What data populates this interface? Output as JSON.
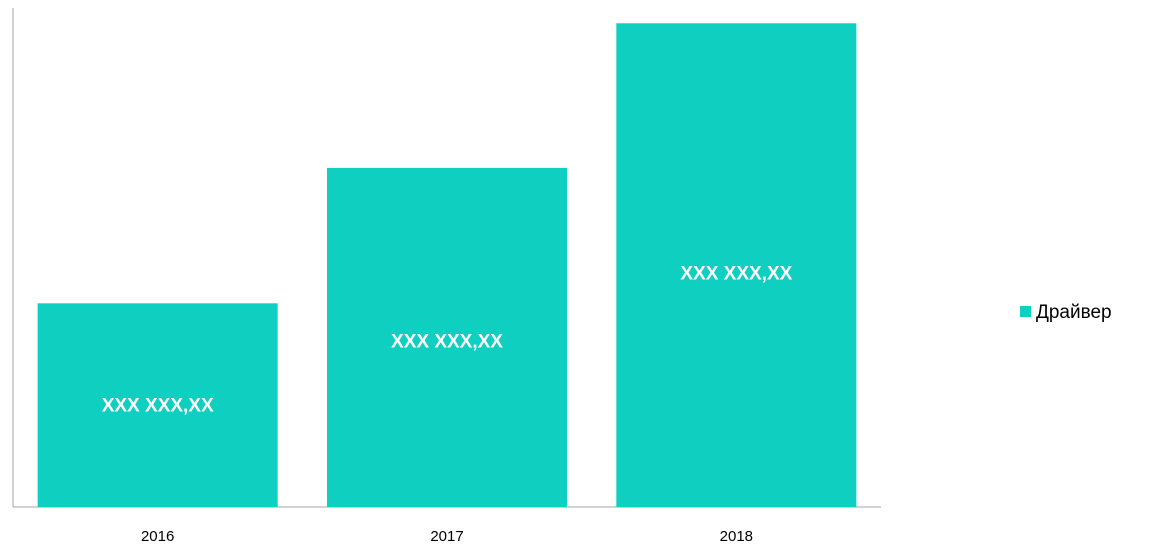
{
  "chart_data": {
    "type": "bar",
    "categories": [
      "2016",
      "2017",
      "2018"
    ],
    "series": [
      {
        "name": "Драйвер",
        "values": [
          200,
          333,
          475
        ],
        "data_labels": [
          "XXX XXX,XX",
          "XXX XXX,XX",
          "XXX XXX,XX"
        ]
      }
    ],
    "ylim": [
      0,
      490
    ],
    "grid": false,
    "legend_position": "right",
    "colors": {
      "bar": "#0ecfc0",
      "axis": "#a6a6a6"
    }
  }
}
